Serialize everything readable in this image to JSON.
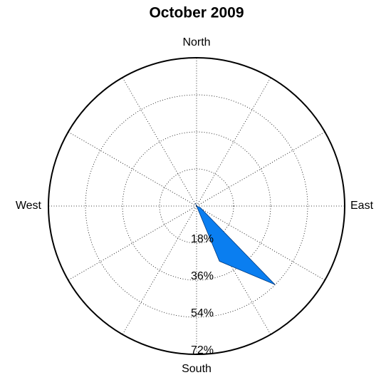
{
  "chart_data": {
    "type": "polar_area",
    "title": "October 2009",
    "direction_labels": [
      "North",
      "East",
      "South",
      "West"
    ],
    "angles": [
      0,
      22.5,
      45,
      67.5,
      90,
      112.5,
      135,
      157.5,
      180,
      202.5,
      225,
      247.5,
      270,
      292.5,
      315,
      337.5
    ],
    "values": [
      0,
      0,
      0,
      0,
      0,
      2,
      54,
      29,
      0,
      0,
      0,
      0,
      0,
      0,
      0,
      1.5
    ],
    "color": "#0a7ef0",
    "rlim": [
      0,
      72
    ],
    "rticks": [
      {
        "value": 18,
        "label": "18%"
      },
      {
        "value": 36,
        "label": "36%"
      },
      {
        "value": 54,
        "label": "54%"
      },
      {
        "value": 72,
        "label": "72%"
      }
    ],
    "thetagrid": [
      0,
      30,
      60,
      90,
      120,
      150,
      180,
      210,
      240,
      270,
      300,
      330
    ],
    "grid": true
  }
}
